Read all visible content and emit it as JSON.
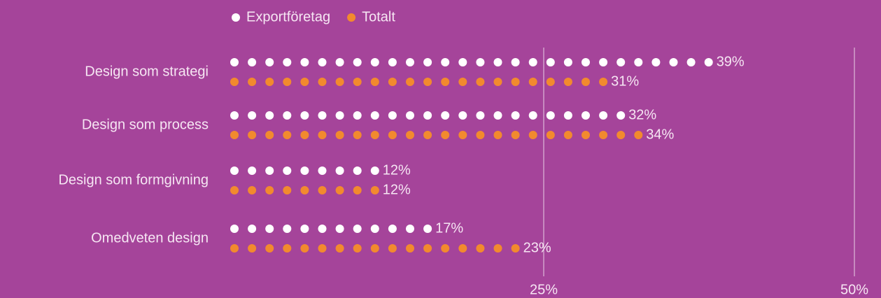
{
  "chart_data": {
    "type": "dot-bar",
    "categories": [
      "Design som strategi",
      "Design som process",
      "Design som formgivning",
      "Omedveten design"
    ],
    "series": [
      {
        "name": "Exportföretag",
        "color": "#ffffff",
        "values": [
          39,
          32,
          12,
          17
        ],
        "value_labels": [
          "39%",
          "32%",
          "12%",
          "17%"
        ]
      },
      {
        "name": "Totalt",
        "color": "#f28a2e",
        "values": [
          31,
          34,
          12,
          23
        ],
        "value_labels": [
          "31%",
          "34%",
          "12%",
          "23%"
        ]
      }
    ],
    "xlim": [
      0,
      50
    ],
    "xticks": [
      {
        "value": 25,
        "label": "25%"
      },
      {
        "value": 50,
        "label": "50%"
      }
    ],
    "grid": true,
    "legend": "top"
  }
}
